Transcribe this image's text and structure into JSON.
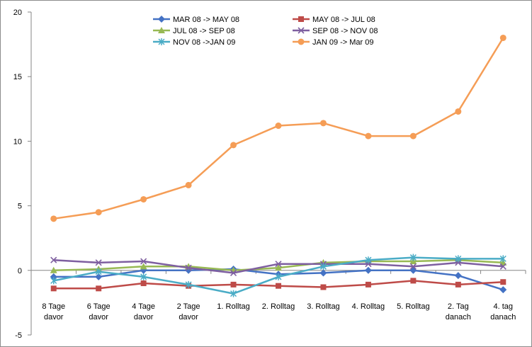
{
  "chart_data": {
    "type": "line",
    "title": "",
    "xlabel": "",
    "ylabel": "",
    "ylim": [
      -5,
      20
    ],
    "yticks": [
      -5,
      0,
      5,
      10,
      15,
      20
    ],
    "grid": false,
    "legend_position": "top-center",
    "categories": [
      [
        "8 Tage",
        "davor"
      ],
      [
        "6 Tage",
        "davor"
      ],
      [
        "4 Tage",
        "davor"
      ],
      [
        "2 Tage",
        "davor"
      ],
      [
        "1. Rolltag"
      ],
      [
        "2. Rolltag"
      ],
      [
        "3. Rolltag"
      ],
      [
        "4. Rolltag"
      ],
      [
        "5. Rolltag"
      ],
      [
        "2. Tag",
        "danach"
      ],
      [
        "4. tag",
        "danach"
      ]
    ],
    "series": [
      {
        "name": "MAR 08 -> MAY 08",
        "color": "#4472c4",
        "marker": "diamond",
        "values": [
          -0.5,
          -0.5,
          0.0,
          0.0,
          0.1,
          -0.3,
          -0.2,
          0.0,
          0.0,
          -0.4,
          -1.5
        ]
      },
      {
        "name": "MAY 08 -> JUL 08",
        "color": "#be4b48",
        "marker": "square",
        "values": [
          -1.4,
          -1.4,
          -1.0,
          -1.2,
          -1.1,
          -1.2,
          -1.3,
          -1.1,
          -0.8,
          -1.1,
          -0.9
        ]
      },
      {
        "name": "JUL 08 -> SEP 08",
        "color": "#98b954",
        "marker": "triangle",
        "values": [
          0.0,
          0.1,
          0.3,
          0.3,
          0.0,
          0.2,
          0.6,
          0.7,
          0.7,
          0.8,
          0.6
        ]
      },
      {
        "name": "SEP 08 -> NOV 08",
        "color": "#7e5fa0",
        "marker": "x",
        "values": [
          0.8,
          0.6,
          0.7,
          0.2,
          -0.2,
          0.5,
          0.5,
          0.5,
          0.3,
          0.6,
          0.3
        ]
      },
      {
        "name": "NOV 08 ->JAN 09",
        "color": "#4aacc6",
        "marker": "star",
        "values": [
          -0.8,
          -0.1,
          -0.5,
          -1.1,
          -1.8,
          -0.5,
          0.3,
          0.8,
          1.0,
          0.9,
          0.9
        ]
      },
      {
        "name": "JAN 09 -> Mar 09",
        "color": "#f59d56",
        "marker": "circle",
        "values": [
          4.0,
          4.5,
          5.5,
          6.6,
          9.7,
          11.2,
          11.4,
          10.4,
          10.4,
          12.3,
          18.0
        ]
      }
    ]
  }
}
